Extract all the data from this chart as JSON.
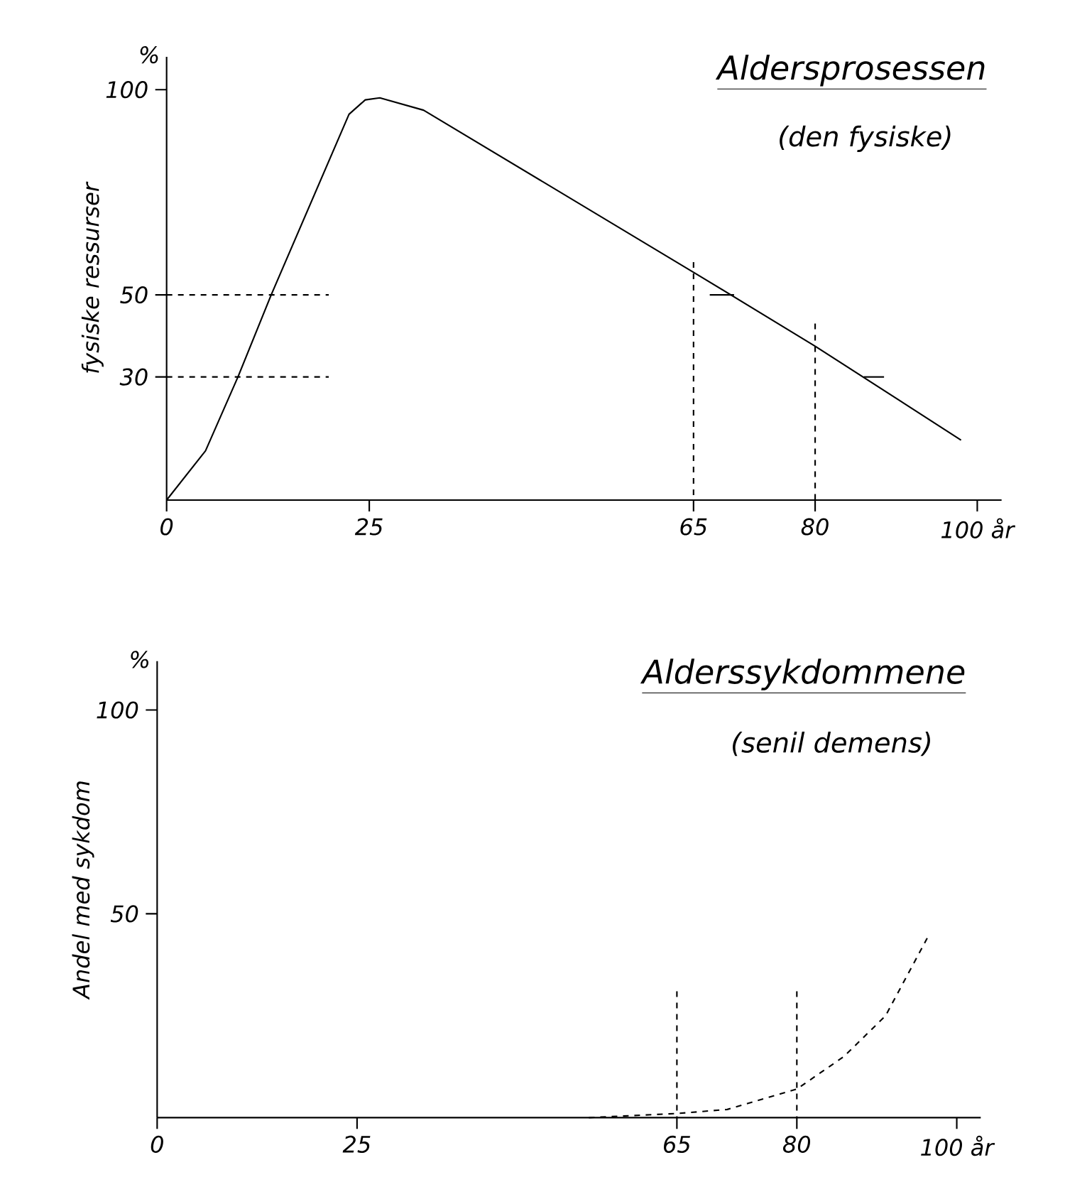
{
  "chart_data": [
    {
      "type": "line",
      "title": "Aldersprosessen",
      "subtitle": "(den fysiske)",
      "ylabel": "fysiske ressurser",
      "annotations": [
        "%"
      ],
      "xlim": [
        0,
        103
      ],
      "ylim": [
        0,
        108
      ],
      "xticks": [
        0,
        25,
        65,
        80,
        {
          "value": 100,
          "label": "100 år"
        }
      ],
      "yticks": [
        30,
        50,
        100
      ],
      "series": [
        {
          "color": "#000000",
          "line_style": "solid",
          "x": [
            0,
            4.8,
            8.8,
            12.9,
            22.5,
            24.5,
            26.3,
            31.7,
            65,
            80,
            98
          ],
          "values": [
            0,
            12,
            30,
            50,
            94,
            97.5,
            98,
            95,
            55.5,
            37.5,
            14.6
          ]
        },
        {
          "color": "#000000",
          "line_style": "dashed",
          "x": [
            0,
            20
          ],
          "values": [
            50,
            50
          ]
        },
        {
          "color": "#000000",
          "line_style": "dashed",
          "x": [
            0,
            20
          ],
          "values": [
            30,
            30
          ]
        },
        {
          "color": "#000000",
          "line_style": "dashed",
          "x": [
            65,
            65
          ],
          "values": [
            58,
            0
          ]
        },
        {
          "color": "#000000",
          "line_style": "dashed",
          "x": [
            80,
            80
          ],
          "values": [
            43,
            0
          ]
        },
        {
          "color": "#000000",
          "line_style": "solid",
          "x": [
            67,
            70
          ],
          "values": [
            50,
            50
          ]
        },
        {
          "color": "#000000",
          "line_style": "solid",
          "x": [
            86,
            88.5
          ],
          "values": [
            30,
            30
          ]
        }
      ]
    },
    {
      "type": "line",
      "title": "Alderssykdommene",
      "subtitle": "(senil demens)",
      "ylabel": "Andel med sykdom",
      "annotations": [
        "%"
      ],
      "xlim": [
        0,
        103
      ],
      "ylim": [
        0,
        112
      ],
      "xticks": [
        0,
        25,
        65,
        80,
        {
          "value": 100,
          "label": "100 år"
        }
      ],
      "yticks": [
        50,
        100
      ],
      "series": [
        {
          "color": "#000000",
          "line_style": "dashed",
          "x": [
            54,
            65,
            71.3,
            80,
            85.9,
            91.1,
            96.3
          ],
          "values": [
            0,
            1,
            2,
            7,
            15,
            25,
            44
          ]
        },
        {
          "color": "#000000",
          "line_style": "dashed",
          "x": [
            65,
            65
          ],
          "values": [
            31,
            0
          ]
        },
        {
          "color": "#000000",
          "line_style": "dashed",
          "x": [
            80,
            80
          ],
          "values": [
            31,
            0
          ]
        }
      ]
    }
  ]
}
